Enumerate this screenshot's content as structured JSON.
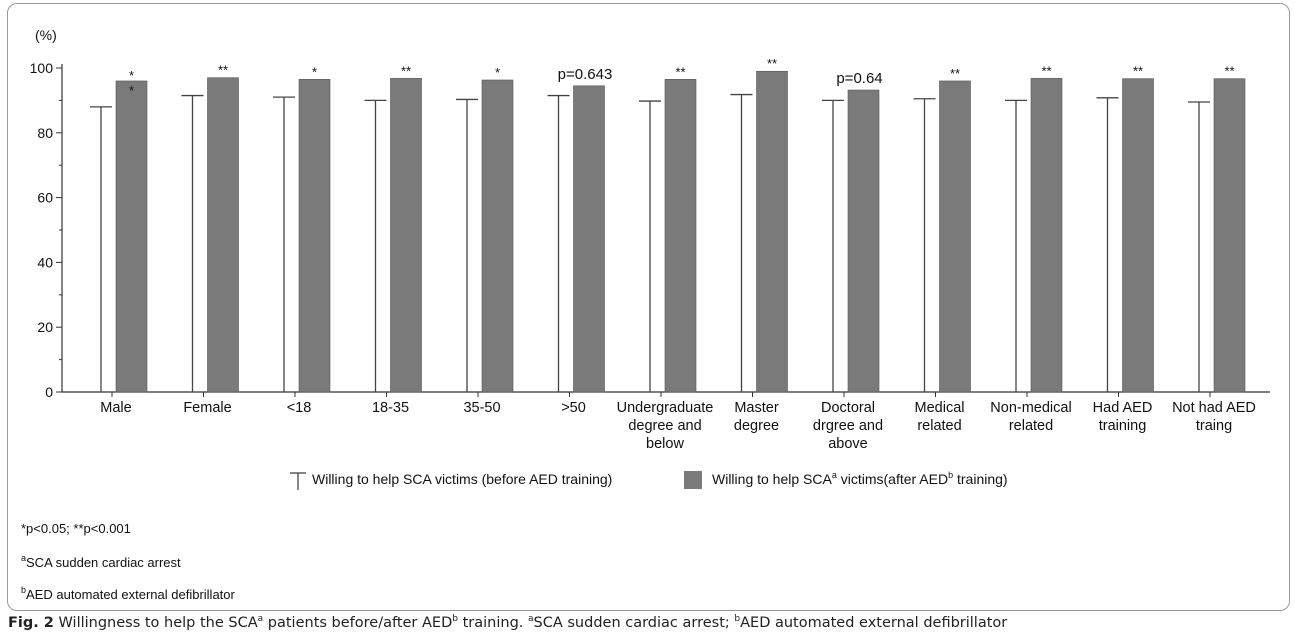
{
  "chart_data": {
    "type": "bar",
    "ylabel": "(%)",
    "ylim": [
      0,
      100
    ],
    "yticks": [
      0,
      20,
      40,
      60,
      80,
      100
    ],
    "categories": [
      [
        "Male"
      ],
      [
        "Female"
      ],
      [
        "<18"
      ],
      [
        "18-35"
      ],
      [
        "35-50"
      ],
      [
        ">50"
      ],
      [
        "Undergraduate",
        "degree and",
        "below"
      ],
      [
        "Master",
        "degree"
      ],
      [
        "Doctoral",
        "drgree and",
        "above"
      ],
      [
        "Medical",
        "related"
      ],
      [
        "Non-medical",
        "related"
      ],
      [
        "Had  AED",
        "training"
      ],
      [
        "Not had  AED",
        "traing"
      ]
    ],
    "series": [
      {
        "name": "Willing to help SCA victims (before AED training)",
        "style": "line-marker",
        "color": "#444444",
        "values": [
          88,
          91.5,
          91,
          90,
          90.3,
          91.5,
          89.8,
          91.8,
          90,
          90.5,
          90,
          90.8,
          89.5
        ]
      },
      {
        "name": "Willing to help SCA victims(after AED training)",
        "style": "bar",
        "color": "#7a7a7a",
        "values": [
          96,
          97,
          96.5,
          96.8,
          96.3,
          94.5,
          96.5,
          99,
          93.2,
          96,
          96.8,
          96.7,
          96.7
        ]
      }
    ],
    "annotations": [
      "*\n*",
      "**",
      "*",
      "**",
      "*",
      "p=0.643",
      "**",
      "**",
      "p=0.64",
      "**",
      "**",
      "**",
      "**"
    ],
    "legend": {
      "position": "bottom",
      "before_text": "Willing to help SCA victims (before AED training)",
      "after_parts": [
        "Willing to help SCA",
        "a",
        " victims(after AED",
        "b",
        " training)"
      ]
    }
  },
  "notes": {
    "significance": "*p<0.05; **p<0.001",
    "sca_sup": "a",
    "sca": "SCA sudden cardiac arrest",
    "aed_sup": "b",
    "aed": "AED automated external defibrillator"
  },
  "caption": {
    "label": "Fig. 2",
    "t1": "  Willingness to help the SCA",
    "s1": "a",
    "t2": " patients before/after AED",
    "s2": "b",
    "t3": " training. ",
    "s3": "a",
    "t4": "SCA sudden cardiac arrest; ",
    "s4": "b",
    "t5": "AED automated external defibrillator"
  }
}
